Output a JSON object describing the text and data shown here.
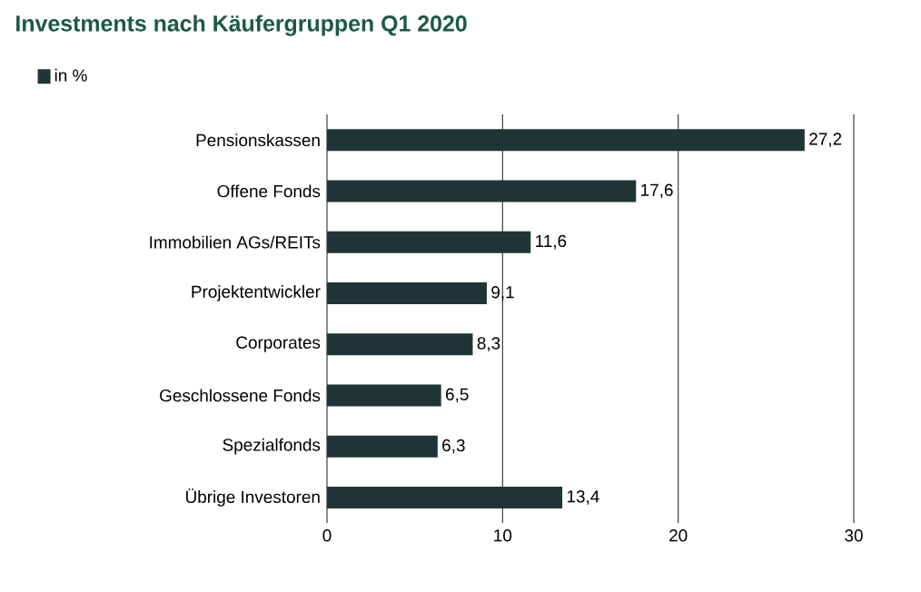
{
  "chart_data": {
    "type": "bar",
    "orientation": "horizontal",
    "title": "Investments nach Käufergruppen Q1 2020",
    "categories": [
      "Pensionskassen",
      "Offene Fonds",
      "Immobilien AGs/REITs",
      "Projektentwickler",
      "Corporates",
      "Geschlossene Fonds",
      "Spezialfonds",
      "Übrige Investoren"
    ],
    "series": [
      {
        "name": "in %",
        "color": "#1f3435",
        "values": [
          27.2,
          17.6,
          11.6,
          9.1,
          8.3,
          6.5,
          6.3,
          13.4
        ],
        "value_labels": [
          "27,2",
          "17,6",
          "11,6",
          "9,1",
          "8,3",
          "6,5",
          "6,3",
          "13,4"
        ]
      }
    ],
    "xlim": [
      0,
      30
    ],
    "xticks": [
      0,
      10,
      20,
      30
    ],
    "grid": "x",
    "legend": "top left"
  }
}
